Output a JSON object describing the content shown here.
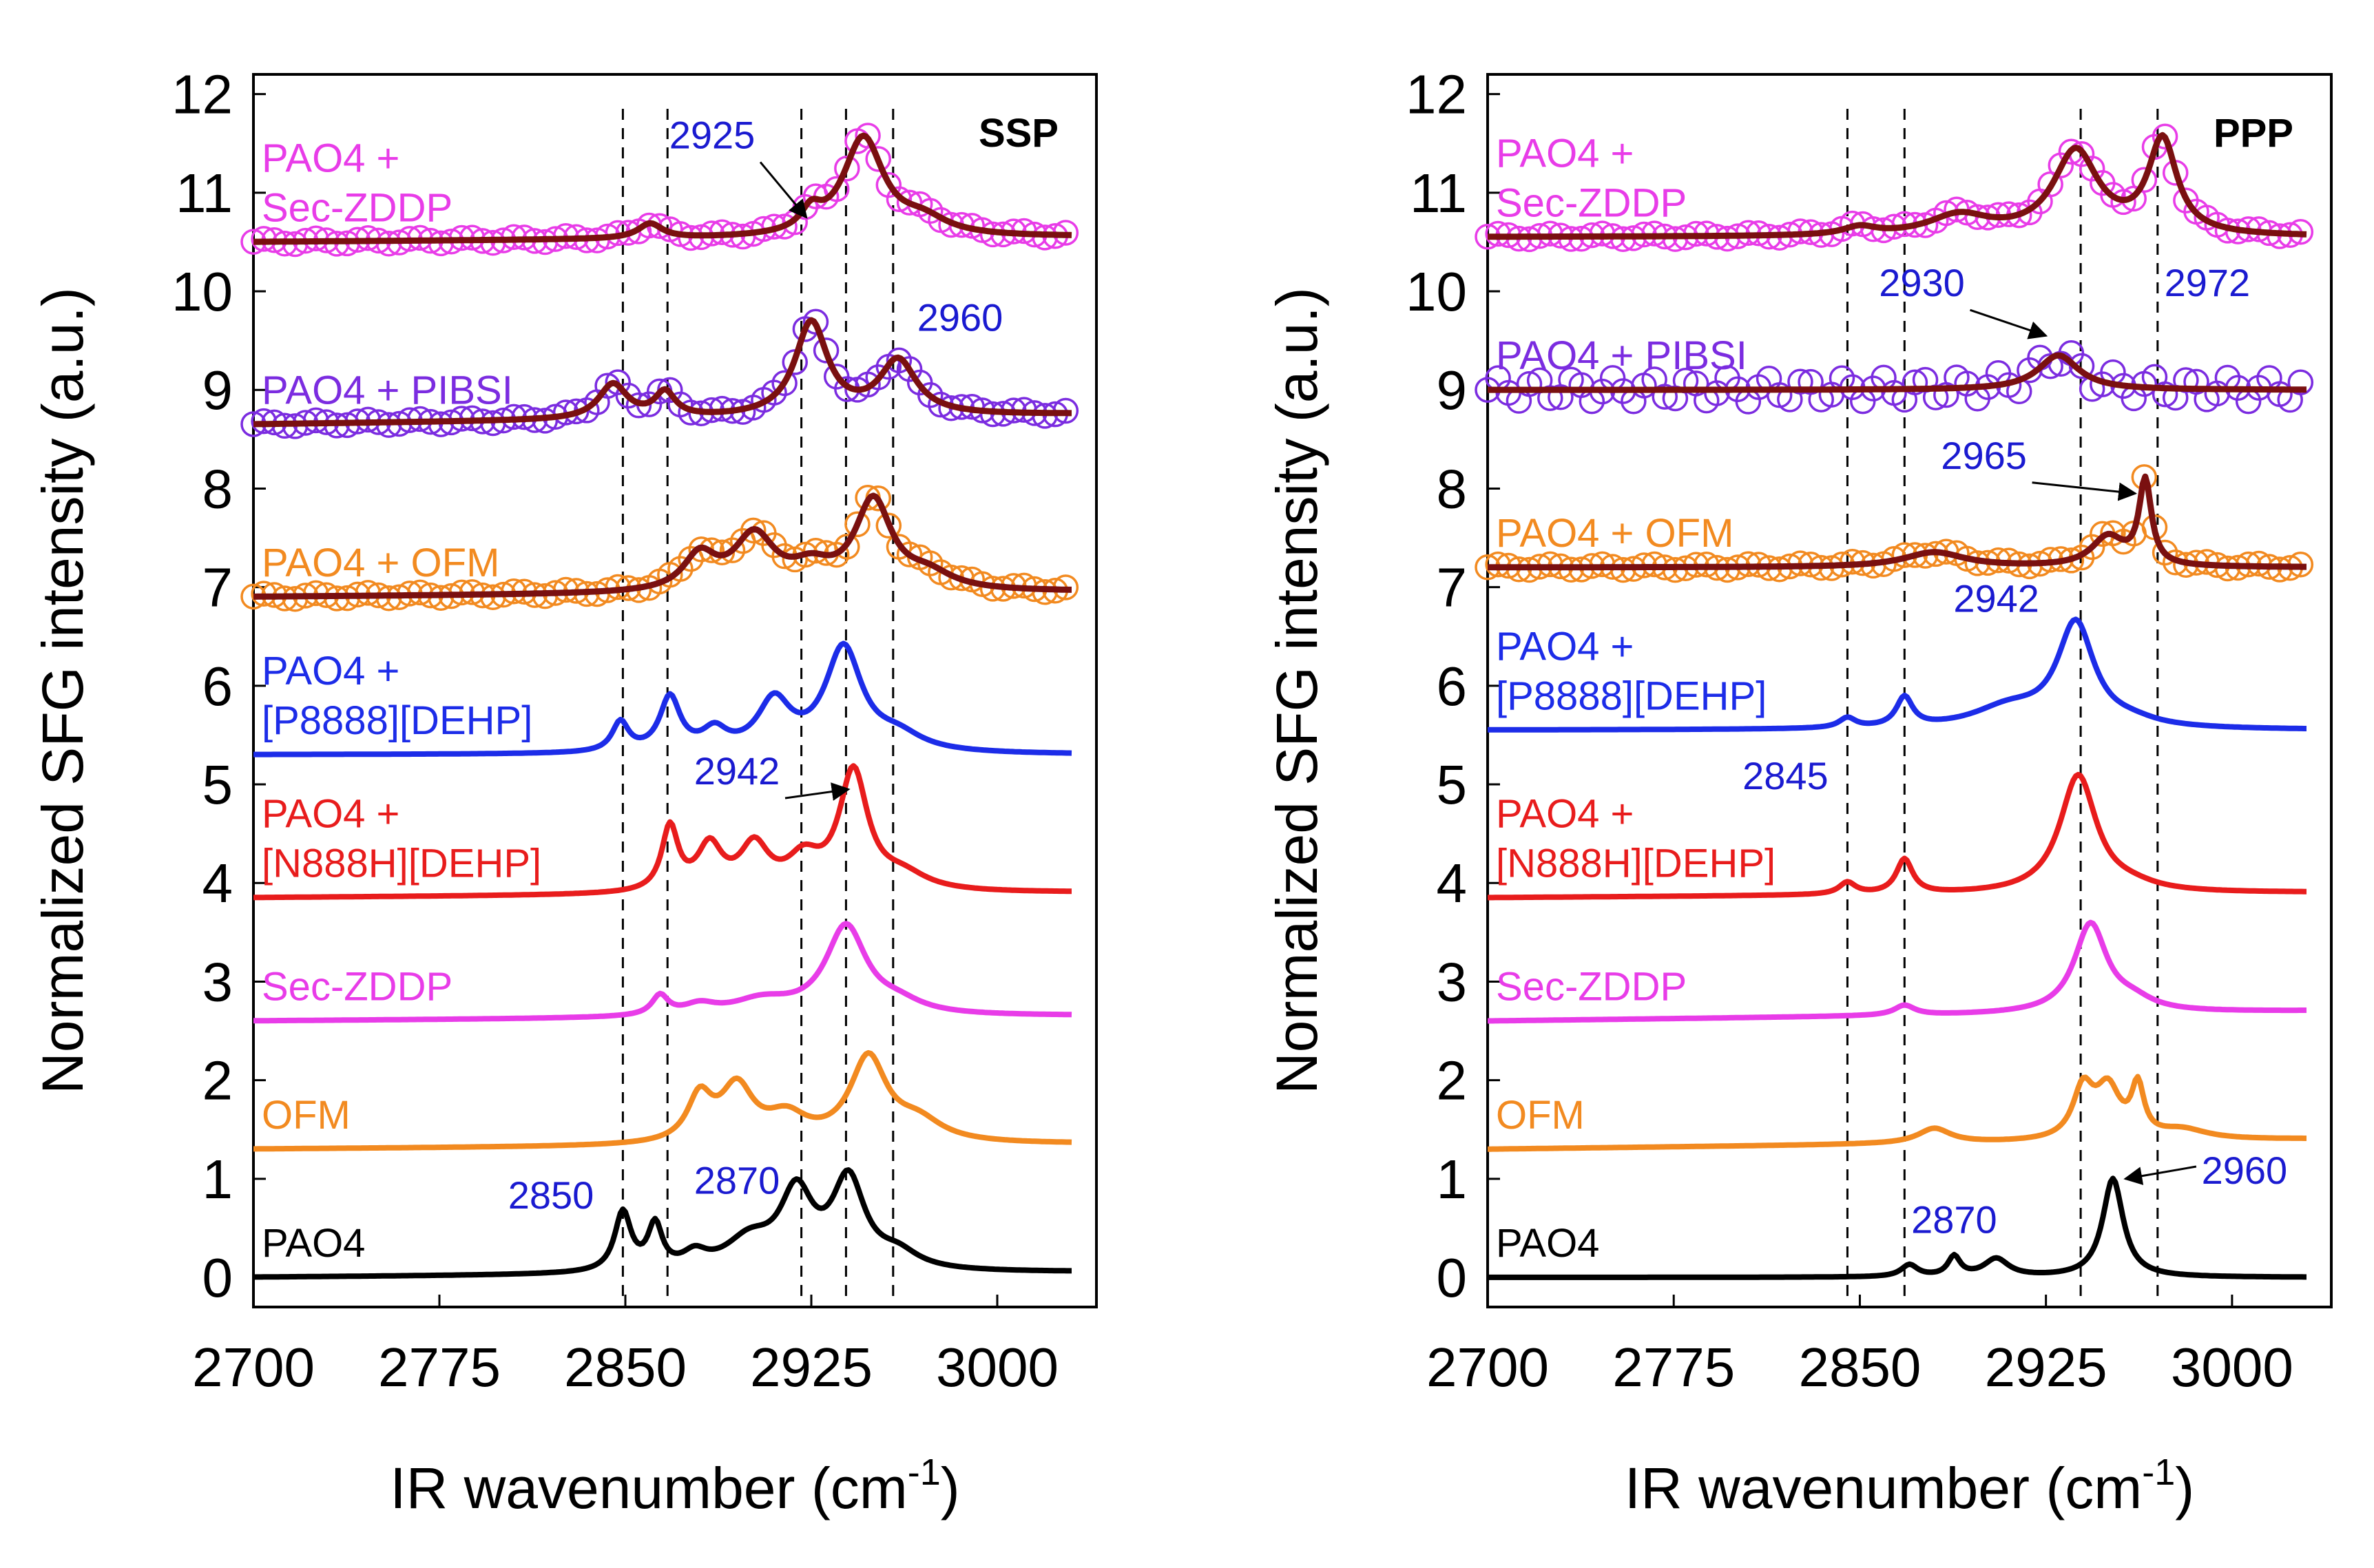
{
  "chart_data": [
    {
      "type": "line",
      "title": "SSP",
      "xlabel": "IR wavenumber (cm",
      "xlabel_sup": "-1",
      "xlabel_close": ")",
      "ylabel": "Normalized SFG intensity (a.u.)",
      "xlim": [
        2700,
        3040
      ],
      "ylim": [
        -0.3,
        12.2
      ],
      "xticks": [
        2700,
        2775,
        2850,
        2925,
        3000
      ],
      "yticks": [
        0,
        1,
        2,
        3,
        4,
        5,
        6,
        7,
        8,
        9,
        10,
        11,
        12
      ],
      "vlines": [
        2849,
        2867,
        2921,
        2939,
        2958
      ],
      "series": [
        {
          "name": "PAO4",
          "label_lines": [
            "PAO4"
          ],
          "color": "#000000",
          "baseline": 0,
          "base_end": 0.05,
          "markers": false,
          "peaks": [
            [
              2849,
              0.6,
              4
            ],
            [
              2862,
              0.45,
              3.5
            ],
            [
              2878,
              0.15,
              6
            ],
            [
              2900,
              0.3,
              12
            ],
            [
              2919,
              0.75,
              8
            ],
            [
              2940,
              0.9,
              8
            ],
            [
              2960,
              0.15,
              10
            ]
          ]
        },
        {
          "name": "OFM",
          "label_lines": [
            "OFM"
          ],
          "color": "#f28a20",
          "baseline": 1.3,
          "base_end": 1.35,
          "markers": false,
          "peaks": [
            [
              2880,
              0.45,
              6
            ],
            [
              2895,
              0.55,
              8
            ],
            [
              2915,
              0.25,
              10
            ],
            [
              2948,
              0.85,
              9
            ],
            [
              2968,
              0.2,
              12
            ]
          ]
        },
        {
          "name": "Sec-ZDDP",
          "label_lines": [
            "Sec-ZDDP"
          ],
          "color": "#e83ce8",
          "baseline": 2.6,
          "base_end": 2.65,
          "markers": false,
          "peaks": [
            [
              2864,
              0.2,
              4
            ],
            [
              2880,
              0.1,
              8
            ],
            [
              2905,
              0.15,
              15
            ],
            [
              2939,
              0.9,
              10
            ],
            [
              2960,
              0.1,
              12
            ]
          ]
        },
        {
          "name": "PAO4 + [N888H][DEHP]",
          "label_lines": [
            "PAO4 +",
            "[N888H][DEHP]"
          ],
          "color": "#e81c1c",
          "baseline": 3.85,
          "base_end": 3.9,
          "markers": false,
          "peaks": [
            [
              2868,
              0.65,
              4
            ],
            [
              2884,
              0.45,
              6
            ],
            [
              2902,
              0.45,
              7
            ],
            [
              2922,
              0.3,
              8
            ],
            [
              2942,
              1.2,
              7
            ],
            [
              2962,
              0.15,
              12
            ]
          ]
        },
        {
          "name": "PAO4 + [P8888][DEHP]",
          "label_lines": [
            "PAO4 +",
            "[P8888][DEHP]"
          ],
          "color": "#1c2ce8",
          "baseline": 5.3,
          "base_end": 5.3,
          "markers": false,
          "peaks": [
            [
              2848,
              0.3,
              4
            ],
            [
              2868,
              0.55,
              5
            ],
            [
              2886,
              0.2,
              6
            ],
            [
              2910,
              0.5,
              8
            ],
            [
              2938,
              1.05,
              9
            ],
            [
              2960,
              0.15,
              12
            ]
          ]
        },
        {
          "name": "PAO4 + OFM",
          "label_lines": [
            "PAO4 + OFM"
          ],
          "color": "#f28a20",
          "baseline": 6.9,
          "base_end": 6.95,
          "markers": true,
          "peaks": [
            [
              2880,
              0.35,
              8
            ],
            [
              2902,
              0.55,
              10
            ],
            [
              2925,
              0.2,
              10
            ],
            [
              2950,
              0.9,
              9
            ],
            [
              2972,
              0.15,
              12
            ]
          ]
        },
        {
          "name": "PAO4 + PIBSI",
          "label_lines": [
            "PAO4 + PIBSI"
          ],
          "color": "#7b2ce0",
          "baseline": 8.65,
          "base_end": 8.75,
          "markers": true,
          "peaks": [
            [
              2845,
              0.35,
              7
            ],
            [
              2866,
              0.25,
              5
            ],
            [
              2925,
              0.95,
              8
            ],
            [
              2960,
              0.55,
              9
            ]
          ]
        },
        {
          "name": "PAO4 + Sec-ZDDP",
          "label_lines": [
            "PAO4 +",
            "Sec-ZDDP"
          ],
          "color": "#e83ce8",
          "baseline": 10.5,
          "base_end": 10.55,
          "markers": true,
          "peaks": [
            [
              2860,
              0.15,
              6
            ],
            [
              2925,
              0.2,
              5
            ],
            [
              2946,
              1.0,
              10
            ],
            [
              2970,
              0.15,
              12
            ]
          ]
        }
      ],
      "fit_color": "#7a1010",
      "annotations": [
        {
          "text": "2850",
          "x": 2820,
          "y": 0.7,
          "arrow": false
        },
        {
          "text": "2870",
          "x": 2895,
          "y": 0.85,
          "arrow": false
        },
        {
          "text": "2942",
          "x": 2895,
          "y": 5.0,
          "arrow": true,
          "ax": 2940,
          "ay": 4.95
        },
        {
          "text": "2960",
          "x": 2985,
          "y": 9.6,
          "arrow": false
        },
        {
          "text": "2925",
          "x": 2885,
          "y": 11.45,
          "arrow": true,
          "ax": 2923,
          "ay": 10.75
        }
      ]
    },
    {
      "type": "line",
      "title": "PPP",
      "xlabel": "IR wavenumber (cm",
      "xlabel_sup": "-1",
      "xlabel_close": ")",
      "ylabel": "Normalized SFG intensity (a.u.)",
      "xlim": [
        2700,
        3040
      ],
      "ylim": [
        -0.3,
        12.2
      ],
      "xticks": [
        2700,
        2775,
        2850,
        2925,
        3000
      ],
      "yticks": [
        0,
        1,
        2,
        3,
        4,
        5,
        6,
        7,
        8,
        9,
        10,
        11,
        12
      ],
      "vlines": [
        2845,
        2868,
        2939,
        2970
      ],
      "series": [
        {
          "name": "PAO4",
          "label_lines": [
            "PAO4"
          ],
          "color": "#000000",
          "baseline": 0,
          "base_end": 0.0,
          "markers": false,
          "peaks": [
            [
              2870,
              0.12,
              4
            ],
            [
              2888,
              0.2,
              3
            ],
            [
              2905,
              0.18,
              6
            ],
            [
              2952,
              1.0,
              5
            ]
          ]
        },
        {
          "name": "OFM",
          "label_lines": [
            "OFM"
          ],
          "color": "#f28a20",
          "baseline": 1.3,
          "base_end": 1.4,
          "markers": false,
          "peaks": [
            [
              2880,
              0.15,
              8
            ],
            [
              2940,
              0.5,
              5
            ],
            [
              2950,
              0.5,
              6
            ],
            [
              2962,
              0.5,
              3
            ],
            [
              2980,
              0.1,
              12
            ]
          ]
        },
        {
          "name": "Sec-ZDDP",
          "label_lines": [
            "Sec-ZDDP"
          ],
          "color": "#e83ce8",
          "baseline": 2.6,
          "base_end": 2.7,
          "markers": false,
          "peaks": [
            [
              2868,
              0.1,
              5
            ],
            [
              2943,
              0.9,
              8
            ],
            [
              2960,
              0.1,
              10
            ]
          ]
        },
        {
          "name": "PAO4 + [N888H][DEHP]",
          "label_lines": [
            "PAO4 +",
            "[N888H][DEHP]"
          ],
          "color": "#e81c1c",
          "baseline": 3.85,
          "base_end": 3.9,
          "markers": false,
          "peaks": [
            [
              2845,
              0.12,
              4
            ],
            [
              2868,
              0.35,
              4
            ],
            [
              2938,
              1.2,
              9
            ],
            [
              2960,
              0.05,
              12
            ]
          ]
        },
        {
          "name": "PAO4 + [P8888][DEHP]",
          "label_lines": [
            "PAO4 +",
            "[P8888][DEHP]"
          ],
          "color": "#1c2ce8",
          "baseline": 5.55,
          "base_end": 5.55,
          "markers": false,
          "peaks": [
            [
              2845,
              0.1,
              4
            ],
            [
              2868,
              0.3,
              4
            ],
            [
              2910,
              0.2,
              18
            ],
            [
              2937,
              1.05,
              9
            ],
            [
              2960,
              0.05,
              12
            ]
          ]
        },
        {
          "name": "PAO4 + OFM",
          "label_lines": [
            "PAO4 + OFM"
          ],
          "color": "#f28a20",
          "baseline": 7.2,
          "base_end": 7.2,
          "markers": true,
          "peaks": [
            [
              2880,
              0.15,
              15
            ],
            [
              2950,
              0.3,
              8
            ],
            [
              2965,
              0.85,
              3
            ]
          ]
        },
        {
          "name": "PAO4 + PIBSI",
          "label_lines": [
            "PAO4 + PIBSI"
          ],
          "color": "#7b2ce0",
          "baseline": 9.0,
          "base_end": 9.0,
          "markers": true,
          "peaks": [
            [
              2930,
              0.35,
              10
            ]
          ]
        },
        {
          "name": "PAO4 + Sec-ZDDP",
          "label_lines": [
            "PAO4 +",
            "Sec-ZDDP"
          ],
          "color": "#e83ce8",
          "baseline": 10.55,
          "base_end": 10.55,
          "markers": true,
          "peaks": [
            [
              2850,
              0.08,
              8
            ],
            [
              2890,
              0.2,
              15
            ],
            [
              2937,
              0.85,
              11
            ],
            [
              2972,
              0.95,
              7
            ]
          ]
        }
      ],
      "fit_color": "#7a1010",
      "annotations": [
        {
          "text": "2870",
          "x": 2888,
          "y": 0.45,
          "arrow": false
        },
        {
          "text": "2960",
          "x": 3005,
          "y": 0.95,
          "arrow": true,
          "ax": 2957,
          "ay": 1.0
        },
        {
          "text": "2845",
          "x": 2820,
          "y": 4.95,
          "arrow": false
        },
        {
          "text": "2942",
          "x": 2905,
          "y": 6.75,
          "arrow": false
        },
        {
          "text": "2965",
          "x": 2900,
          "y": 8.2,
          "arrow": true,
          "ax": 2961,
          "ay": 7.95
        },
        {
          "text": "2930",
          "x": 2875,
          "y": 9.95,
          "arrow": true,
          "ax": 2925,
          "ay": 9.55
        },
        {
          "text": "2972",
          "x": 2990,
          "y": 9.95,
          "arrow": false
        }
      ]
    }
  ]
}
